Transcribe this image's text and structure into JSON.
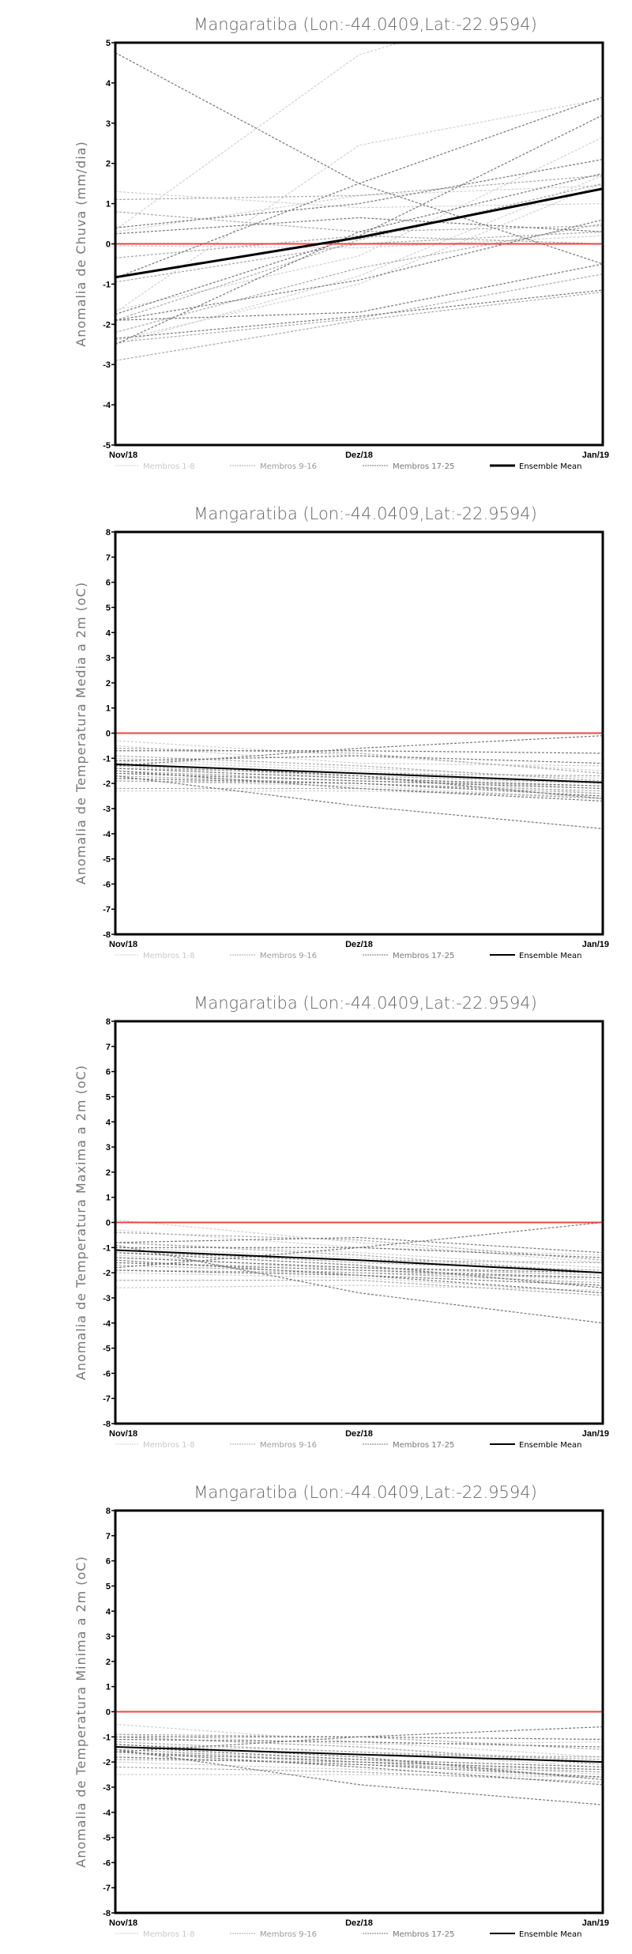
{
  "legend": {
    "items": [
      {
        "label": "Membros 1-8",
        "color": "#cfcfcf",
        "style": "dashed"
      },
      {
        "label": "Membros 9-16",
        "color": "#a9a9a9",
        "style": "dashed"
      },
      {
        "label": "Membros 17-25",
        "color": "#777777",
        "style": "dashed"
      },
      {
        "label": "Ensemble Mean",
        "color": "#000000",
        "style": "solid"
      }
    ]
  },
  "zero_line_color": "#ee4444",
  "chart_data": [
    {
      "type": "line",
      "title": "Mangaratiba (Lon:-44.0409,Lat:-22.9594)",
      "ylabel": "Anomalia de Chuva (mm/dia)",
      "categories": [
        "Nov/18",
        "Dez/18",
        "Jan/19"
      ],
      "ylim": [
        -5,
        5
      ],
      "yticks": [
        "-5",
        "-4",
        "-3",
        "-2",
        "-1",
        "0",
        "1",
        "2",
        "3",
        "4",
        "5"
      ],
      "mean_width": 3,
      "groups": [
        [
          [
            0.35,
            4.7,
            6.5
          ],
          [
            -1.7,
            2.45,
            3.6
          ],
          [
            1.3,
            0.9,
            1.0
          ],
          [
            -0.05,
            -0.1,
            0.2
          ],
          [
            -1.65,
            -0.3,
            2.65
          ],
          [
            -2.5,
            -0.8,
            1.7
          ],
          [
            -2.4,
            -1.0,
            1.5
          ],
          [
            0.3,
            1.2,
            1.45
          ]
        ],
        [
          [
            1.1,
            1.2,
            1.7
          ],
          [
            -1.9,
            0.1,
            1.5
          ],
          [
            -0.35,
            0.2,
            0.0
          ],
          [
            -2.45,
            -1.85,
            -0.75
          ],
          [
            -2.2,
            -0.6,
            0.5
          ],
          [
            -0.95,
            0.0,
            0.3
          ],
          [
            0.8,
            0.3,
            0.45
          ],
          [
            -2.9,
            -1.9,
            -1.2
          ]
        ],
        [
          [
            4.75,
            1.5,
            -0.5
          ],
          [
            -0.85,
            1.5,
            3.65
          ],
          [
            -1.75,
            0.2,
            3.2
          ],
          [
            0.4,
            1.0,
            2.1
          ],
          [
            0.25,
            0.65,
            0.3
          ],
          [
            -1.9,
            -0.9,
            0.6
          ],
          [
            -2.35,
            -1.8,
            -1.15
          ],
          [
            -1.9,
            -1.7,
            -0.5
          ],
          [
            -2.5,
            0.3,
            1.75
          ]
        ]
      ],
      "mean": [
        -0.83,
        0.16,
        1.37
      ]
    },
    {
      "type": "line",
      "title": "Mangaratiba (Lon:-44.0409,Lat:-22.9594)",
      "ylabel": "Anomalia de Temperatura Media a 2m (oC)",
      "categories": [
        "Nov/18",
        "Dez/18",
        "Jan/19"
      ],
      "ylim": [
        -8,
        8
      ],
      "yticks": [
        "-8",
        "-7",
        "-6",
        "-5",
        "-4",
        "-3",
        "-2",
        "-1",
        "0",
        "1",
        "2",
        "3",
        "4",
        "5",
        "6",
        "7",
        "8"
      ],
      "mean_width": 2,
      "groups": [
        [
          [
            -0.3,
            -0.9,
            -1.5
          ],
          [
            -1.0,
            -1.4,
            -1.8
          ],
          [
            -1.1,
            -1.5,
            -2.0
          ],
          [
            -1.6,
            -1.7,
            -2.4
          ],
          [
            -1.9,
            -2.1,
            -2.6
          ],
          [
            -2.3,
            -2.3,
            -2.5
          ],
          [
            -0.5,
            -1.2,
            -1.3
          ],
          [
            -1.2,
            -1.8,
            -2.2
          ]
        ],
        [
          [
            -0.6,
            -0.8,
            -1.6
          ],
          [
            -1.4,
            -1.6,
            -1.7
          ],
          [
            -1.5,
            -1.9,
            -2.1
          ],
          [
            -1.7,
            -2.0,
            -2.3
          ],
          [
            -1.3,
            -1.7,
            -2.0
          ],
          [
            -0.9,
            -1.3,
            -1.9
          ],
          [
            -1.9,
            -2.0,
            -2.4
          ],
          [
            -2.2,
            -2.2,
            -2.6
          ]
        ],
        [
          [
            -1.7,
            -2.9,
            -3.8
          ],
          [
            -1.3,
            -0.6,
            -0.1
          ],
          [
            -0.7,
            -0.7,
            -0.8
          ],
          [
            -1.1,
            -0.9,
            -1.2
          ],
          [
            -1.4,
            -1.8,
            -2.1
          ],
          [
            -1.6,
            -1.9,
            -2.2
          ],
          [
            -1.8,
            -2.0,
            -2.5
          ],
          [
            -1.2,
            -1.7,
            -2.6
          ],
          [
            -1.5,
            -2.2,
            -2.7
          ]
        ]
      ],
      "mean": [
        -1.24,
        -1.6,
        -1.96
      ]
    },
    {
      "type": "line",
      "title": "Mangaratiba (Lon:-44.0409,Lat:-22.9594)",
      "ylabel": "Anomalia de Temperatura Maxima a 2m (oC)",
      "categories": [
        "Nov/18",
        "Dez/18",
        "Jan/19"
      ],
      "ylim": [
        -8,
        8
      ],
      "yticks": [
        "-8",
        "-7",
        "-6",
        "-5",
        "-4",
        "-3",
        "-2",
        "-1",
        "0",
        "1",
        "2",
        "3",
        "4",
        "5",
        "6",
        "7",
        "8"
      ],
      "mean_width": 2,
      "groups": [
        [
          [
            0.1,
            -0.8,
            -1.6
          ],
          [
            -0.8,
            -1.2,
            -1.8
          ],
          [
            -1.0,
            -1.4,
            -2.0
          ],
          [
            -1.6,
            -1.8,
            -2.5
          ],
          [
            -2.0,
            -2.2,
            -2.8
          ],
          [
            -2.6,
            -2.5,
            -2.7
          ],
          [
            -0.3,
            -1.0,
            -1.3
          ],
          [
            -1.3,
            -1.9,
            -2.3
          ]
        ],
        [
          [
            -0.4,
            -0.7,
            -1.5
          ],
          [
            -1.2,
            -1.5,
            -1.6
          ],
          [
            -1.4,
            -1.8,
            -2.1
          ],
          [
            -1.7,
            -2.0,
            -2.2
          ],
          [
            -1.1,
            -1.6,
            -1.9
          ],
          [
            -0.8,
            -1.3,
            -2.0
          ],
          [
            -1.9,
            -2.0,
            -2.4
          ],
          [
            -2.3,
            -2.3,
            -2.9
          ]
        ],
        [
          [
            -0.9,
            -2.8,
            -4.0
          ],
          [
            -1.8,
            -1.0,
            0.0
          ],
          [
            -0.8,
            -0.6,
            -1.2
          ],
          [
            -1.0,
            -1.0,
            -1.4
          ],
          [
            -1.4,
            -1.8,
            -2.0
          ],
          [
            -1.6,
            -1.9,
            -2.2
          ],
          [
            -1.9,
            -2.1,
            -2.5
          ],
          [
            -1.2,
            -1.7,
            -2.6
          ],
          [
            -1.5,
            -2.1,
            -2.8
          ]
        ]
      ],
      "mean": [
        -1.1,
        -1.5,
        -2.0
      ]
    },
    {
      "type": "line",
      "title": "Mangaratiba (Lon:-44.0409,Lat:-22.9594)",
      "ylabel": "Anomalia de Temperatura Minima a 2m (oC)",
      "categories": [
        "Nov/18",
        "Dez/18",
        "Jan/19"
      ],
      "ylim": [
        -8,
        8
      ],
      "yticks": [
        "-8",
        "-7",
        "-6",
        "-5",
        "-4",
        "-3",
        "-2",
        "-1",
        "0",
        "1",
        "2",
        "3",
        "4",
        "5",
        "6",
        "7",
        "8"
      ],
      "mean_width": 2,
      "groups": [
        [
          [
            -0.5,
            -1.2,
            -1.8
          ],
          [
            -1.0,
            -1.4,
            -2.0
          ],
          [
            -1.3,
            -1.6,
            -2.2
          ],
          [
            -1.7,
            -1.9,
            -2.4
          ],
          [
            -2.0,
            -2.3,
            -2.6
          ],
          [
            -2.5,
            -2.5,
            -2.6
          ],
          [
            -0.9,
            -1.3,
            -1.2
          ],
          [
            -1.5,
            -1.9,
            -2.5
          ]
        ],
        [
          [
            -0.9,
            -1.0,
            -1.5
          ],
          [
            -1.4,
            -1.7,
            -1.8
          ],
          [
            -1.5,
            -2.0,
            -2.3
          ],
          [
            -1.8,
            -2.1,
            -2.4
          ],
          [
            -1.2,
            -1.6,
            -1.9
          ],
          [
            -1.0,
            -1.4,
            -2.1
          ],
          [
            -1.9,
            -2.0,
            -2.6
          ],
          [
            -2.2,
            -2.4,
            -2.8
          ]
        ],
        [
          [
            -1.5,
            -2.9,
            -3.7
          ],
          [
            -1.6,
            -1.0,
            -0.6
          ],
          [
            -1.0,
            -1.0,
            -1.1
          ],
          [
            -1.1,
            -1.2,
            -1.4
          ],
          [
            -1.4,
            -1.9,
            -2.2
          ],
          [
            -1.6,
            -2.0,
            -2.3
          ],
          [
            -1.8,
            -2.1,
            -2.6
          ],
          [
            -1.3,
            -1.8,
            -2.7
          ],
          [
            -1.6,
            -2.2,
            -2.9
          ]
        ]
      ],
      "mean": [
        -1.4,
        -1.7,
        -2.0
      ]
    }
  ]
}
